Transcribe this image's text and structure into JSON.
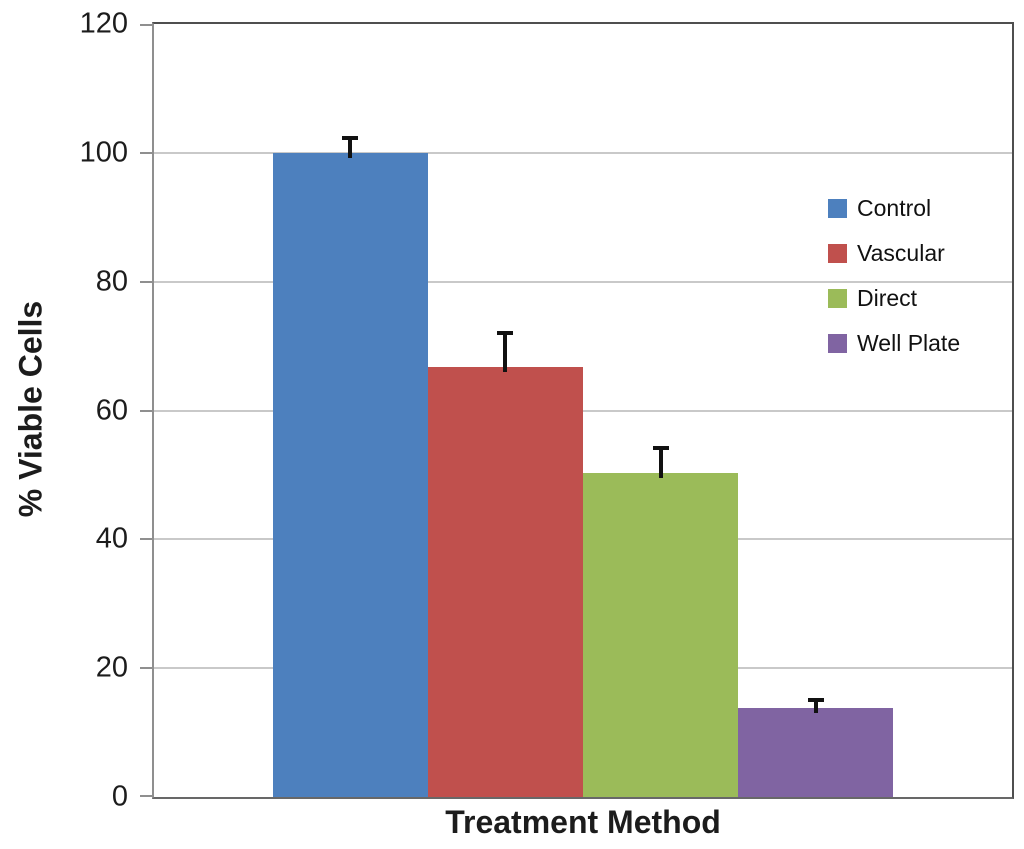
{
  "chart_data": {
    "type": "bar",
    "title": "",
    "xlabel": "Treatment Method",
    "ylabel": "% Viable Cells",
    "categories": [
      "Control",
      "Vascular",
      "Direct",
      "Well Plate"
    ],
    "values": [
      100,
      66.7,
      50.3,
      13.8
    ],
    "errors": [
      2,
      5,
      3.6,
      1
    ],
    "colors": [
      "#4D80BE",
      "#C0504D",
      "#9BBB59",
      "#8064A2"
    ],
    "error_bar_color": "#111111",
    "ylim": [
      0,
      120
    ],
    "yticks": [
      "0",
      "20",
      "40",
      "60",
      "80",
      "100",
      "120"
    ],
    "grid": true,
    "legend_position": "inside-right",
    "legend_entries": [
      "Control",
      "Vascular",
      "Direct",
      "Well Plate"
    ]
  }
}
